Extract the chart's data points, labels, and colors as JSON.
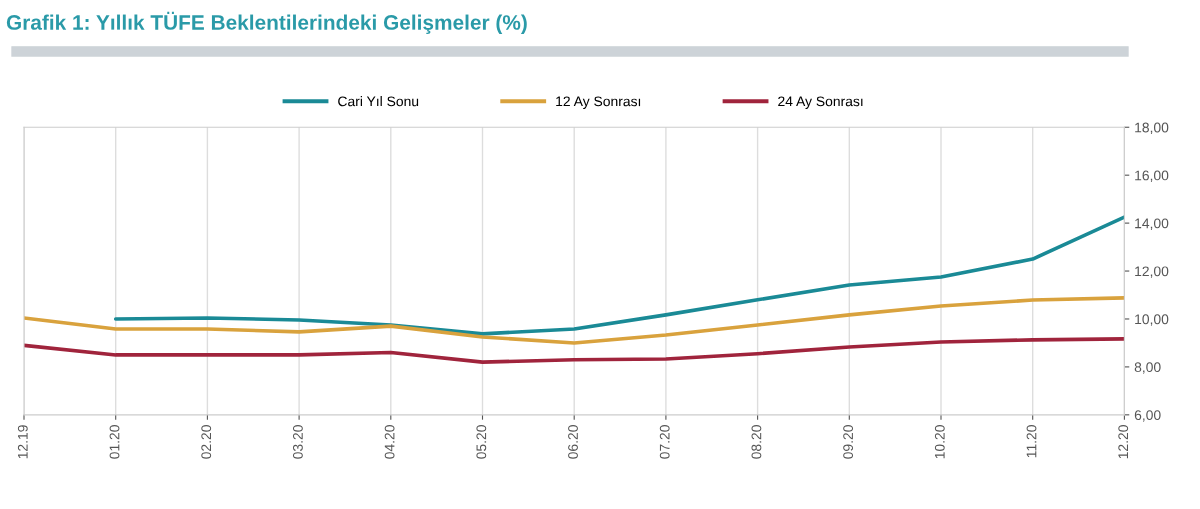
{
  "chart_data": {
    "type": "line",
    "title": "Grafik 1: Yıllık TÜFE Beklentilerindeki Gelişmeler (%)",
    "categories": [
      "12.19",
      "01.20",
      "02.20",
      "03.20",
      "04.20",
      "05.20",
      "06.20",
      "07.20",
      "08.20",
      "09.20",
      "10.20",
      "11.20",
      "12.20"
    ],
    "series": [
      {
        "name": "Cari Yıl Sonu",
        "color": "#1a8a96",
        "values": [
          null,
          10.0,
          10.04,
          9.96,
          9.75,
          9.38,
          9.58,
          10.17,
          10.8,
          11.42,
          11.75,
          12.5,
          14.25
        ]
      },
      {
        "name": "12 Ay Sonrası",
        "color": "#d9a23d",
        "values": [
          10.04,
          9.58,
          9.58,
          9.46,
          9.7,
          9.25,
          9.0,
          9.33,
          9.75,
          10.17,
          10.54,
          10.79,
          10.88
        ]
      },
      {
        "name": "24 Ay Sonrası",
        "color": "#a0243c",
        "values": [
          8.9,
          8.5,
          8.5,
          8.5,
          8.6,
          8.2,
          8.3,
          8.33,
          8.55,
          8.83,
          9.04,
          9.13,
          9.17
        ]
      }
    ],
    "ylim": [
      6,
      18
    ],
    "yticks": [
      {
        "value": 6,
        "label": "6,00"
      },
      {
        "value": 8,
        "label": "8,00"
      },
      {
        "value": 10,
        "label": "10,00"
      },
      {
        "value": 12,
        "label": "12,00"
      },
      {
        "value": 14,
        "label": "14,00"
      },
      {
        "value": 16,
        "label": "16,00"
      },
      {
        "value": 18,
        "label": "18,00"
      }
    ],
    "grid": "x",
    "legend": "top",
    "marker": "none",
    "line_style": "solid"
  }
}
